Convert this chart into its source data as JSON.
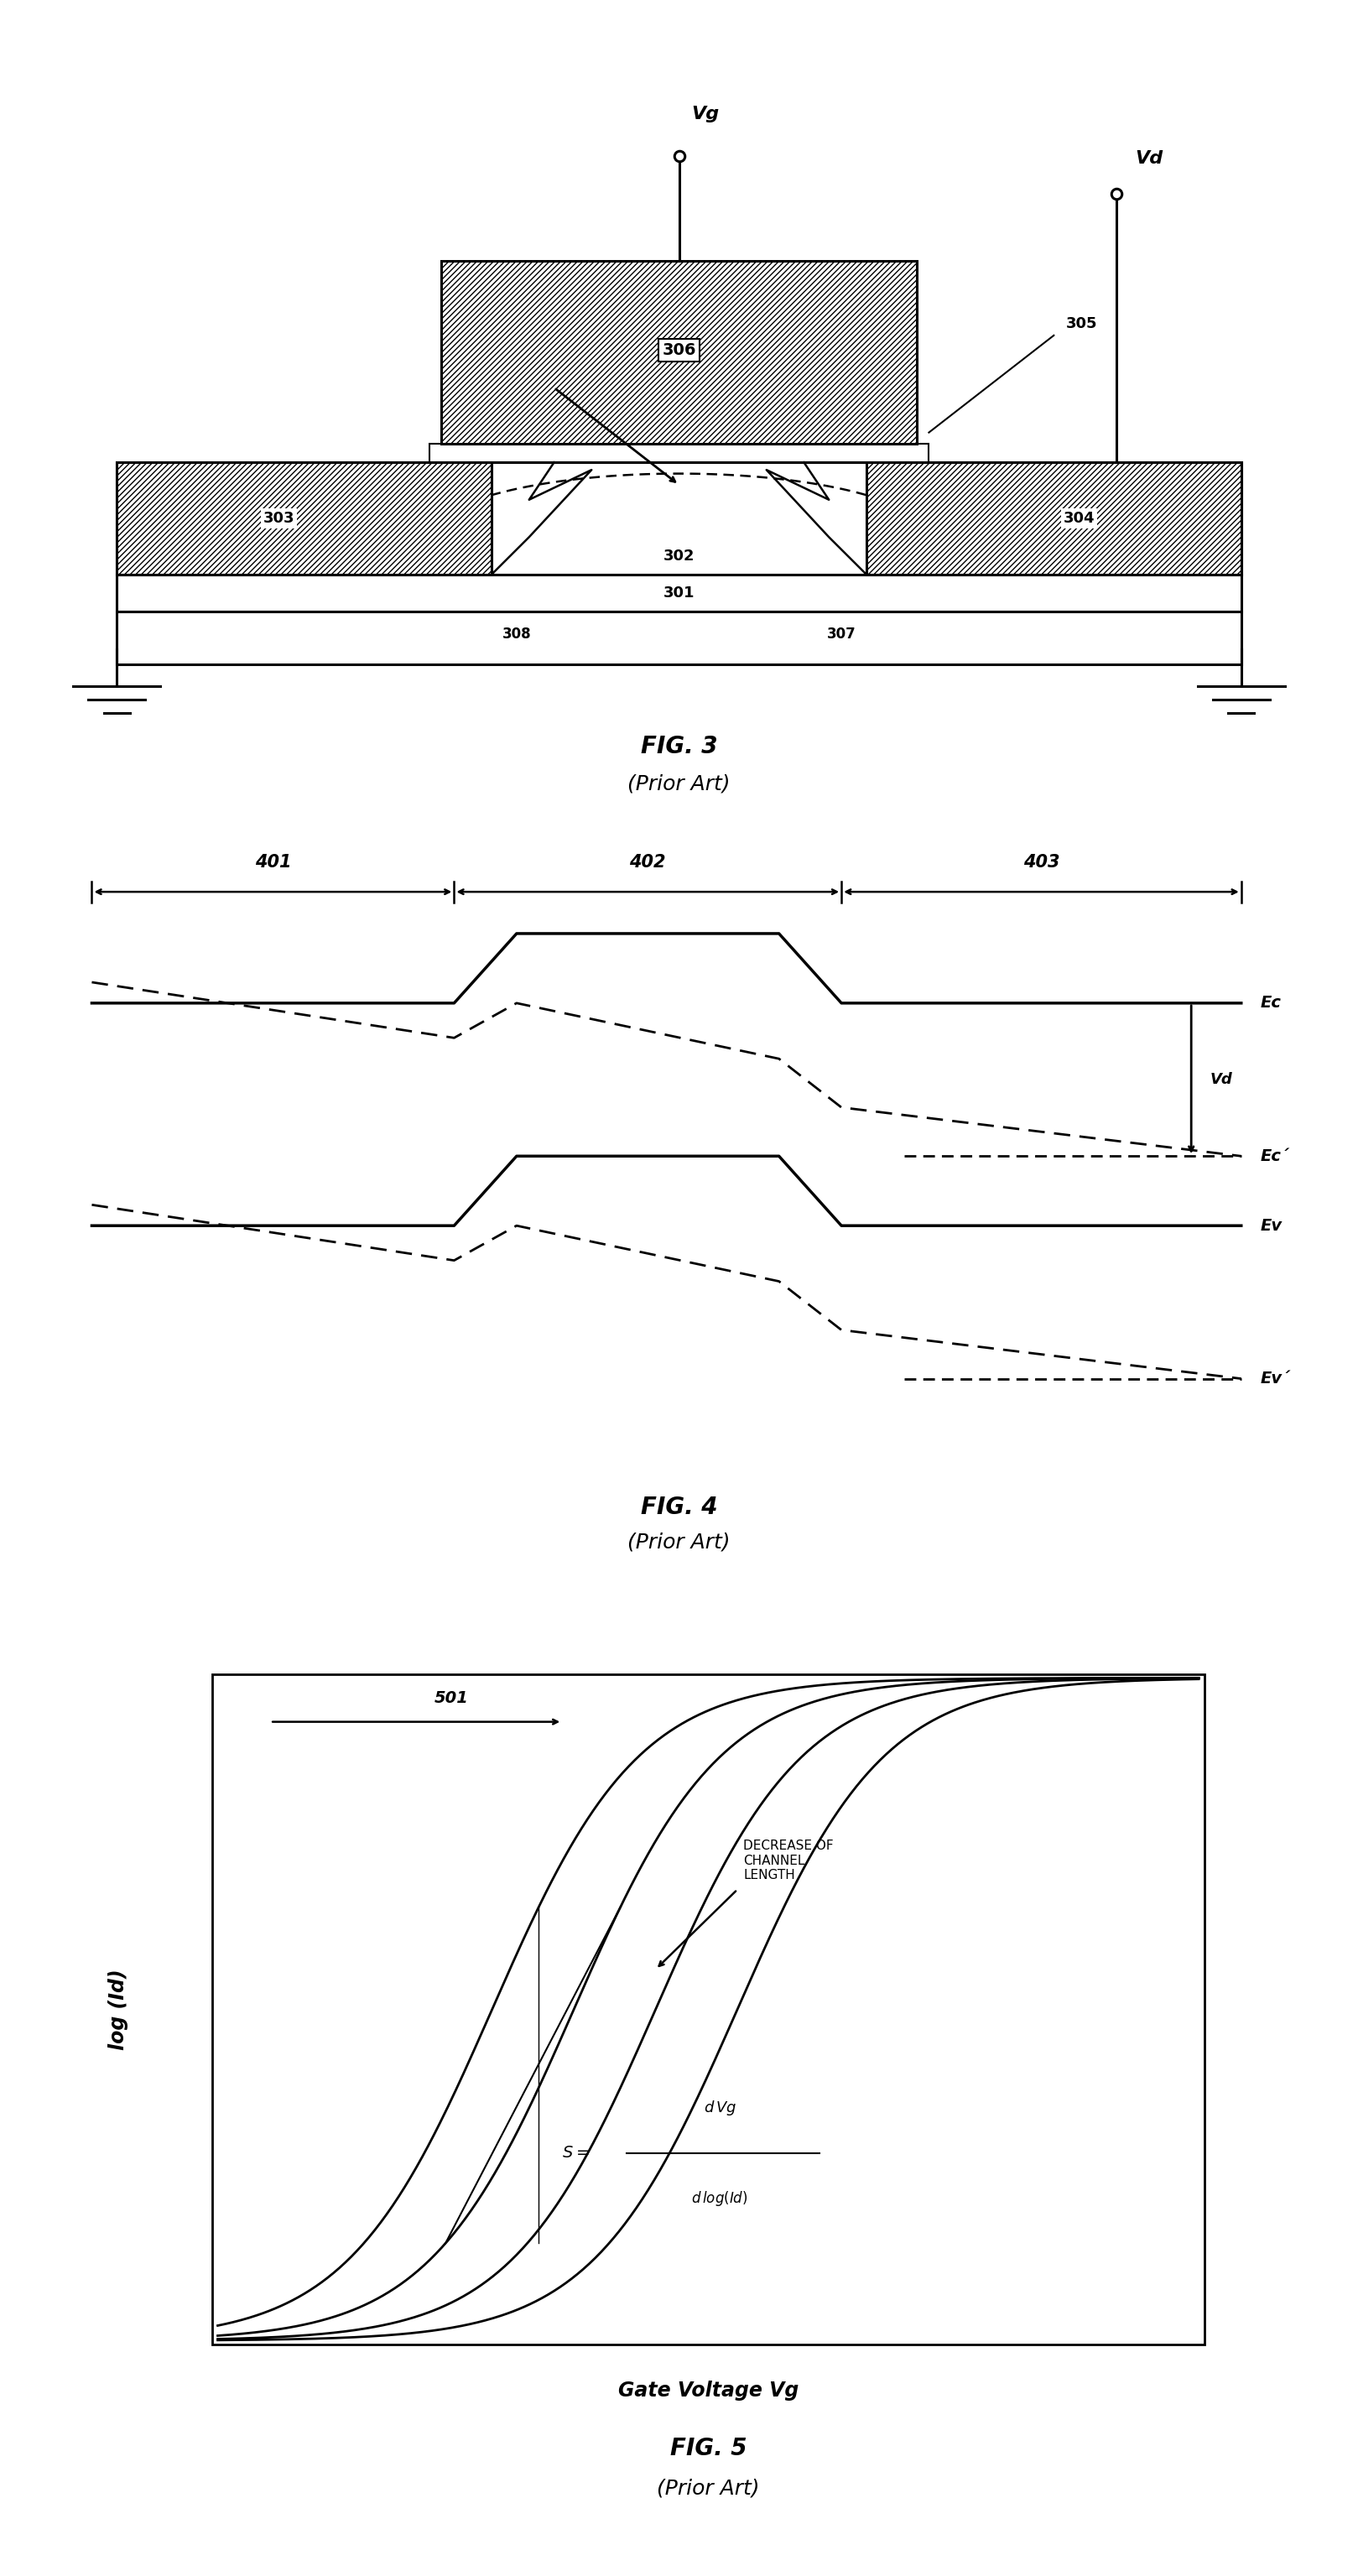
{
  "bg_color": "#ffffff",
  "fig3": {
    "title": "FIG. 3",
    "subtitle": "(Prior Art)"
  },
  "fig4": {
    "title": "FIG. 4",
    "subtitle": "(Prior Art)"
  },
  "fig5": {
    "title": "FIG. 5",
    "subtitle": "(Prior Art)",
    "xlabel": "Gate Voltage Vg",
    "ylabel": "log (Id)",
    "dec_channel": "DECREASE OF\nCHANNEL\nLENGTH",
    "s_formula_top": "d Vg",
    "s_formula_bot": "d log(Id)",
    "label501": "501"
  }
}
